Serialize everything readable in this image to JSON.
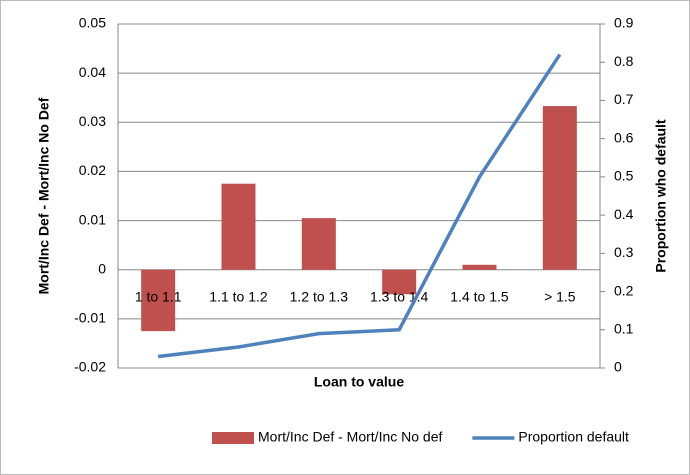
{
  "chart_data": {
    "type": "combo",
    "x_label": "Loan to value",
    "y_label": "Mort/Inc Def - Mort/Inc No Def",
    "y2_label": "Proportion who default",
    "categories": [
      "1 to 1.1",
      "1.1 to 1.2",
      "1.2 to 1.3",
      "1.3 to 1.4",
      "1.4 to 1.5",
      "> 1.5"
    ],
    "series": [
      {
        "name": "Mort/Inc Def - Mort/Inc No def",
        "type": "bar",
        "color": "#c0504d",
        "values": [
          -0.0125,
          0.0175,
          0.0105,
          -0.005,
          0.001,
          0.0333
        ]
      },
      {
        "name": "Proportion default",
        "type": "line",
        "axis": "y2",
        "color": "#4f81bd",
        "values": [
          0.03,
          0.055,
          0.09,
          0.1,
          0.5,
          0.82
        ]
      }
    ],
    "ylim": [
      -0.02,
      0.05
    ],
    "yticks": [
      -0.02,
      -0.01,
      0,
      0.01,
      0.02,
      0.03,
      0.04,
      0.05
    ],
    "y2lim": [
      0,
      0.9
    ],
    "y2ticks": [
      0,
      0.1,
      0.2,
      0.3,
      0.4,
      0.5,
      0.6,
      0.7,
      0.8,
      0.9
    ],
    "grid": true,
    "legend": "bottom"
  }
}
